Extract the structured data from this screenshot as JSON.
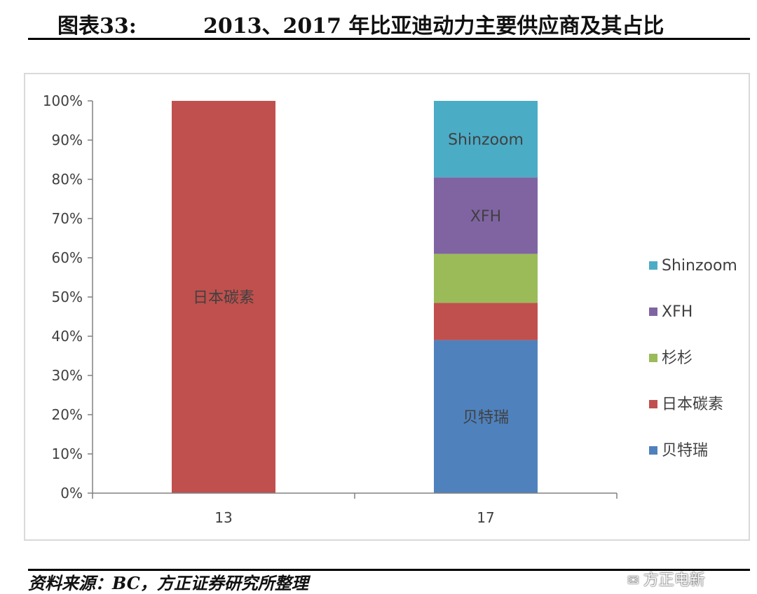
{
  "header": {
    "figure_label": "图表33:",
    "title": "2013、2017 年比亚迪动力主要供应商及其占比"
  },
  "footer": {
    "source_note": "资料来源：BC，方正证券研究所整理",
    "watermark": "方正电新"
  },
  "colors": {
    "贝特瑞": "#4f81bd",
    "日本碳素": "#c0504d",
    "杉杉": "#9bbb59",
    "XFH": "#8064a2",
    "Shinzoom": "#4bacc6"
  },
  "chart_data": {
    "type": "bar",
    "stacked": true,
    "categories": [
      "13",
      "17"
    ],
    "series": [
      {
        "name": "贝特瑞",
        "values": [
          0,
          39
        ]
      },
      {
        "name": "日本碳素",
        "values": [
          100,
          9.5
        ]
      },
      {
        "name": "杉杉",
        "values": [
          0,
          12.5
        ]
      },
      {
        "name": "XFH",
        "values": [
          0,
          19.5
        ]
      },
      {
        "name": "Shinzoom",
        "values": [
          0,
          19.5
        ]
      }
    ],
    "data_labels": [
      {
        "text": "日本碳素",
        "category": "13",
        "series": "日本碳素"
      },
      {
        "text": "贝特瑞",
        "category": "17",
        "series": "贝特瑞"
      },
      {
        "text": "XFH",
        "category": "17",
        "series": "XFH"
      },
      {
        "text": "Shinzoom",
        "category": "17",
        "series": "Shinzoom"
      }
    ],
    "legend_order": [
      "Shinzoom",
      "XFH",
      "杉杉",
      "日本碳素",
      "贝特瑞"
    ],
    "legend_position": "right",
    "ylim": [
      0,
      100
    ],
    "yticks": [
      "0%",
      "10%",
      "20%",
      "30%",
      "40%",
      "50%",
      "60%",
      "70%",
      "80%",
      "90%",
      "100%"
    ],
    "grid": false
  }
}
